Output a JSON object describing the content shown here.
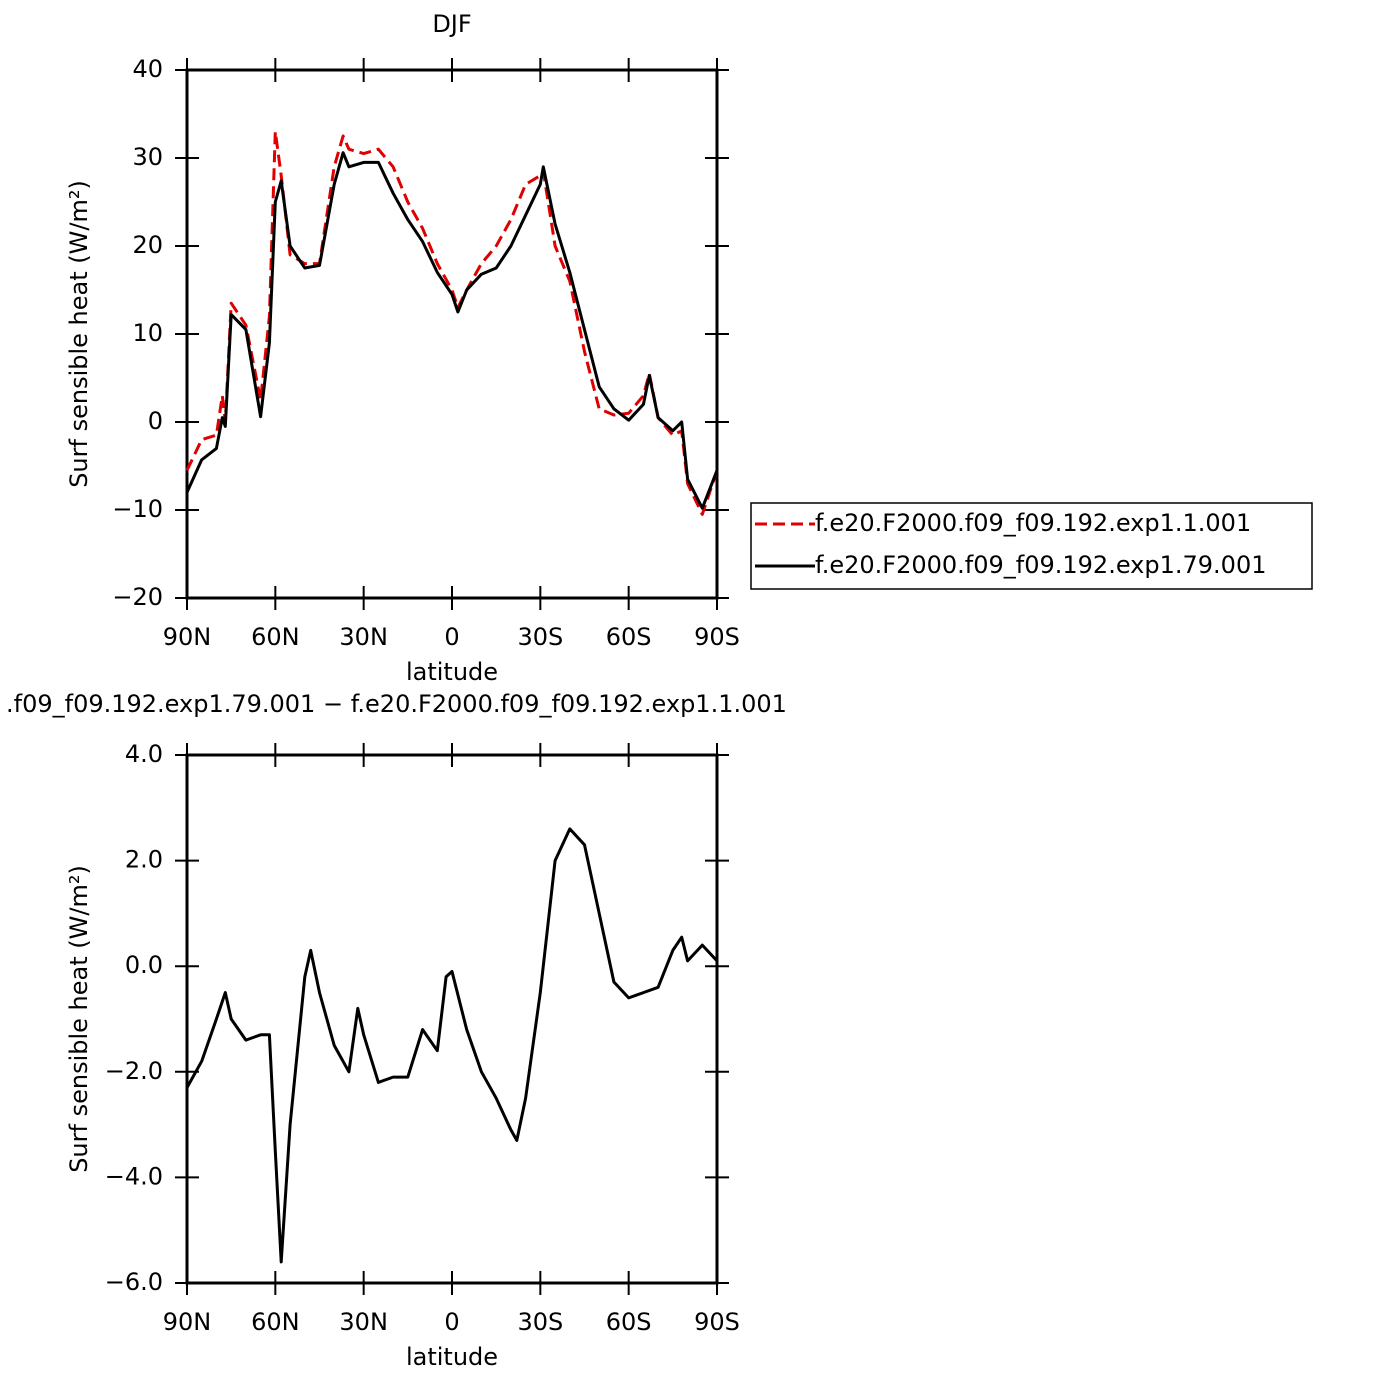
{
  "chart_data": [
    {
      "type": "line",
      "title": "DJF",
      "xlabel": "latitude",
      "ylabel": "Surf sensible heat (W/m²)",
      "x": [
        90,
        85,
        80,
        78,
        77,
        75,
        70,
        65,
        62,
        60,
        58,
        55,
        50,
        45,
        40,
        37,
        35,
        30,
        25,
        20,
        15,
        10,
        5,
        0,
        -2,
        -5,
        -10,
        -15,
        -20,
        -25,
        -30,
        -31,
        -35,
        -40,
        -45,
        -50,
        -55,
        -60,
        -65,
        -67,
        -70,
        -75,
        -78,
        -80,
        -85,
        -90
      ],
      "series": [
        {
          "name": "f.e20.F2000.f09_f09.192.exp1.1.001",
          "color": "#e00000",
          "dashed": true,
          "values": [
            -5.5,
            -2,
            -1.5,
            3,
            0,
            13.5,
            11,
            2.5,
            12,
            33,
            28,
            19,
            18,
            18,
            29,
            32.5,
            31,
            30.5,
            31,
            29,
            25,
            22,
            18,
            15,
            13,
            15,
            18,
            20,
            23,
            27,
            28,
            28.5,
            20,
            16,
            8,
            1.5,
            0.8,
            1,
            3,
            5.5,
            0.5,
            -1.5,
            -1,
            -7,
            -10.5,
            -5.5
          ]
        },
        {
          "name": "f.e20.F2000.f09_f09.192.exp1.79.001",
          "color": "#000000",
          "dashed": false,
          "values": [
            -8,
            -4.3,
            -3,
            0.5,
            -0.5,
            12.2,
            10.5,
            0.6,
            9,
            25,
            27.4,
            20,
            17.5,
            17.8,
            27,
            30.6,
            29,
            29.5,
            29.5,
            26,
            23,
            20.5,
            17,
            14.5,
            12.5,
            15,
            16.8,
            17.5,
            20,
            23.5,
            27,
            29,
            22.5,
            17,
            10.5,
            4,
            1.5,
            0.2,
            2,
            5.3,
            0.5,
            -1,
            0,
            -6.5,
            -9.8,
            -5.5
          ]
        }
      ],
      "xlim": [
        90,
        -90
      ],
      "xticks": [
        {
          "value": 90,
          "label": "90N"
        },
        {
          "value": 60,
          "label": "60N"
        },
        {
          "value": 30,
          "label": "30N"
        },
        0,
        {
          "value": -30,
          "label": "30S"
        },
        {
          "value": -60,
          "label": "60S"
        },
        {
          "value": -90,
          "label": "90S"
        }
      ],
      "ylim": [
        -20,
        40
      ],
      "yticks": [
        40,
        30,
        20,
        10,
        0,
        {
          "value": -10,
          "label": "−10"
        },
        {
          "value": -20,
          "label": "−20"
        }
      ]
    },
    {
      "type": "line",
      "title": ".f09_f09.192.exp1.79.001 − f.e20.F2000.f09_f09.192.exp1.1.001",
      "xlabel": "latitude",
      "ylabel": "Surf sensible heat (W/m²)",
      "x": [
        90,
        85,
        80,
        77,
        75,
        70,
        65,
        62,
        60,
        58,
        55,
        50,
        48,
        45,
        40,
        35,
        32,
        30,
        25,
        20,
        15,
        10,
        5,
        2,
        0,
        -5,
        -10,
        -15,
        -20,
        -22,
        -25,
        -30,
        -33,
        -35,
        -40,
        -45,
        -50,
        -55,
        -60,
        -65,
        -70,
        -75,
        -78,
        -80,
        -85,
        -90
      ],
      "color": "#000000",
      "values": [
        -2.3,
        -1.8,
        -1.0,
        -0.5,
        -1.0,
        -1.4,
        -1.3,
        -1.3,
        -3.5,
        -5.6,
        -3.0,
        -0.2,
        0.3,
        -0.5,
        -1.5,
        -2.0,
        -0.8,
        -1.3,
        -2.2,
        -2.1,
        -2.1,
        -1.2,
        -1.6,
        -0.2,
        -0.1,
        -1.2,
        -2.0,
        -2.5,
        -3.1,
        -3.3,
        -2.5,
        -0.5,
        1.0,
        2.0,
        2.6,
        2.3,
        1.0,
        -0.3,
        -0.6,
        -0.5,
        -0.4,
        0.3,
        0.55,
        0.1,
        0.4,
        0.1
      ],
      "xlim": [
        90,
        -90
      ],
      "xticks": [
        {
          "value": 90,
          "label": "90N"
        },
        {
          "value": 60,
          "label": "60N"
        },
        {
          "value": 30,
          "label": "30N"
        },
        0,
        {
          "value": -30,
          "label": "30S"
        },
        {
          "value": -60,
          "label": "60S"
        },
        {
          "value": -90,
          "label": "90S"
        }
      ],
      "ylim": [
        -6,
        4
      ],
      "yticks": [
        {
          "value": 4,
          "label": "4.0"
        },
        {
          "value": 2,
          "label": "2.0"
        },
        {
          "value": 0,
          "label": "0.0"
        },
        {
          "value": -2,
          "label": "−2.0"
        },
        {
          "value": -4,
          "label": "−4.0"
        },
        {
          "value": -6,
          "label": "−6.0"
        }
      ]
    }
  ]
}
